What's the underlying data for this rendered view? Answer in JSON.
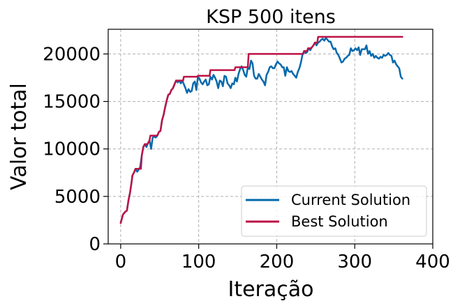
{
  "chart_data": {
    "type": "line",
    "title": "KSP 500 itens",
    "xlabel": "Iteração",
    "ylabel": "Valor total",
    "xlim": [
      -16,
      400
    ],
    "ylim": [
      0,
      22600
    ],
    "x_ticks": [
      0,
      100,
      200,
      300,
      400
    ],
    "y_ticks": [
      0,
      5000,
      10000,
      15000,
      20000
    ],
    "x_tick_labels": [
      "0",
      "100",
      "200",
      "300",
      "400"
    ],
    "y_tick_labels": [
      "0",
      "5000",
      "10000",
      "15000",
      "20000"
    ],
    "grid": true,
    "legend_position": "lower-right",
    "series": [
      {
        "name": "Current Solution",
        "color": "#0369ac",
        "points": [
          [
            0,
            2200
          ],
          [
            3,
            3100
          ],
          [
            6,
            3400
          ],
          [
            8,
            3500
          ],
          [
            10,
            4600
          ],
          [
            12,
            5400
          ],
          [
            14,
            6500
          ],
          [
            15,
            7200
          ],
          [
            17,
            7500
          ],
          [
            19,
            7900
          ],
          [
            21,
            7600
          ],
          [
            23,
            7800
          ],
          [
            25,
            8100
          ],
          [
            27,
            9300
          ],
          [
            29,
            10200
          ],
          [
            31,
            10500
          ],
          [
            33,
            10200
          ],
          [
            35,
            10600
          ],
          [
            37,
            10900
          ],
          [
            39,
            10000
          ],
          [
            41,
            11200
          ],
          [
            43,
            11300
          ],
          [
            45,
            11200
          ],
          [
            47,
            11400
          ],
          [
            49,
            11800
          ],
          [
            51,
            11900
          ],
          [
            53,
            13000
          ],
          [
            55,
            13600
          ],
          [
            57,
            14400
          ],
          [
            59,
            15100
          ],
          [
            61,
            15700
          ],
          [
            63,
            15800
          ],
          [
            65,
            16200
          ],
          [
            67,
            16400
          ],
          [
            69,
            16800
          ],
          [
            71,
            17200
          ],
          [
            73,
            17000
          ],
          [
            75,
            17200
          ],
          [
            77,
            16900
          ],
          [
            79,
            17200
          ],
          [
            81,
            16800
          ],
          [
            83,
            16400
          ],
          [
            85,
            15900
          ],
          [
            87,
            16300
          ],
          [
            89,
            16000
          ],
          [
            91,
            16100
          ],
          [
            93,
            16900
          ],
          [
            95,
            17100
          ],
          [
            97,
            16200
          ],
          [
            99,
            17600
          ],
          [
            101,
            17400
          ],
          [
            103,
            17000
          ],
          [
            105,
            16800
          ],
          [
            107,
            17100
          ],
          [
            109,
            17300
          ],
          [
            111,
            16700
          ],
          [
            113,
            16800
          ],
          [
            115,
            17600
          ],
          [
            117,
            17300
          ],
          [
            119,
            17800
          ],
          [
            121,
            17500
          ],
          [
            123,
            17100
          ],
          [
            125,
            16400
          ],
          [
            127,
            17200
          ],
          [
            129,
            17100
          ],
          [
            131,
            16600
          ],
          [
            133,
            17700
          ],
          [
            135,
            17600
          ],
          [
            137,
            16900
          ],
          [
            139,
            16700
          ],
          [
            141,
            16400
          ],
          [
            143,
            16900
          ],
          [
            145,
            16800
          ],
          [
            147,
            17500
          ],
          [
            149,
            17100
          ],
          [
            151,
            17900
          ],
          [
            153,
            18400
          ],
          [
            155,
            18700
          ],
          [
            157,
            18300
          ],
          [
            159,
            17800
          ],
          [
            161,
            17600
          ],
          [
            163,
            18600
          ],
          [
            165,
            18400
          ],
          [
            167,
            19300
          ],
          [
            169,
            19000
          ],
          [
            171,
            17700
          ],
          [
            173,
            17400
          ],
          [
            175,
            17400
          ],
          [
            177,
            17900
          ],
          [
            179,
            17600
          ],
          [
            181,
            17300
          ],
          [
            183,
            17100
          ],
          [
            185,
            16700
          ],
          [
            187,
            17800
          ],
          [
            189,
            18100
          ],
          [
            191,
            18600
          ],
          [
            193,
            18700
          ],
          [
            195,
            18500
          ],
          [
            197,
            18500
          ],
          [
            199,
            18900
          ],
          [
            201,
            19200
          ],
          [
            203,
            19000
          ],
          [
            205,
            18900
          ],
          [
            207,
            18600
          ],
          [
            209,
            18600
          ],
          [
            211,
            17700
          ],
          [
            213,
            18600
          ],
          [
            215,
            18200
          ],
          [
            217,
            18100
          ],
          [
            219,
            18200
          ],
          [
            221,
            17900
          ],
          [
            223,
            17700
          ],
          [
            225,
            17500
          ],
          [
            227,
            18100
          ],
          [
            229,
            18500
          ],
          [
            231,
            19100
          ],
          [
            233,
            19900
          ],
          [
            235,
            20300
          ],
          [
            237,
            20100
          ],
          [
            239,
            20200
          ],
          [
            241,
            20600
          ],
          [
            243,
            20400
          ],
          [
            245,
            20700
          ],
          [
            247,
            20900
          ],
          [
            249,
            21200
          ],
          [
            251,
            20900
          ],
          [
            253,
            21200
          ],
          [
            255,
            21300
          ],
          [
            257,
            21500
          ],
          [
            259,
            21600
          ],
          [
            261,
            21400
          ],
          [
            263,
            21700
          ],
          [
            265,
            21500
          ],
          [
            267,
            21300
          ],
          [
            269,
            21300
          ],
          [
            271,
            20800
          ],
          [
            273,
            20500
          ],
          [
            275,
            20600
          ],
          [
            277,
            20100
          ],
          [
            279,
            19900
          ],
          [
            281,
            19500
          ],
          [
            283,
            19100
          ],
          [
            285,
            19200
          ],
          [
            287,
            19500
          ],
          [
            289,
            19600
          ],
          [
            291,
            19800
          ],
          [
            293,
            19900
          ],
          [
            295,
            20600
          ],
          [
            297,
            20300
          ],
          [
            299,
            20400
          ],
          [
            301,
            20600
          ],
          [
            303,
            20400
          ],
          [
            305,
            20700
          ],
          [
            307,
            19900
          ],
          [
            309,
            20500
          ],
          [
            311,
            20500
          ],
          [
            313,
            20500
          ],
          [
            315,
            20900
          ],
          [
            317,
            20000
          ],
          [
            319,
            20300
          ],
          [
            321,
            19800
          ],
          [
            323,
            20000
          ],
          [
            325,
            19600
          ],
          [
            327,
            19800
          ],
          [
            329,
            19600
          ],
          [
            331,
            19500
          ],
          [
            333,
            19700
          ],
          [
            335,
            19600
          ],
          [
            337,
            19900
          ],
          [
            339,
            19800
          ],
          [
            341,
            19900
          ],
          [
            343,
            20100
          ],
          [
            345,
            19900
          ],
          [
            347,
            19800
          ],
          [
            349,
            19100
          ],
          [
            351,
            19300
          ],
          [
            353,
            18900
          ],
          [
            355,
            18700
          ],
          [
            357,
            18500
          ],
          [
            359,
            17600
          ],
          [
            361,
            17400
          ]
        ]
      },
      {
        "name": "Best Solution",
        "color": "#bd1246",
        "points": [
          [
            0,
            2200
          ],
          [
            3,
            3100
          ],
          [
            6,
            3400
          ],
          [
            8,
            3500
          ],
          [
            10,
            4600
          ],
          [
            12,
            5400
          ],
          [
            14,
            6500
          ],
          [
            15,
            7200
          ],
          [
            17,
            7500
          ],
          [
            19,
            7900
          ],
          [
            26,
            7900
          ],
          [
            27,
            9300
          ],
          [
            29,
            10200
          ],
          [
            31,
            10500
          ],
          [
            34,
            10500
          ],
          [
            35,
            10600
          ],
          [
            37,
            10900
          ],
          [
            38,
            11400
          ],
          [
            47,
            11400
          ],
          [
            49,
            11800
          ],
          [
            51,
            11900
          ],
          [
            53,
            13000
          ],
          [
            55,
            13600
          ],
          [
            57,
            14400
          ],
          [
            59,
            15100
          ],
          [
            61,
            15700
          ],
          [
            63,
            15800
          ],
          [
            65,
            16200
          ],
          [
            67,
            16400
          ],
          [
            69,
            16800
          ],
          [
            71,
            17200
          ],
          [
            80,
            17200
          ],
          [
            81,
            17600
          ],
          [
            98,
            17600
          ],
          [
            99,
            17700
          ],
          [
            114,
            17700
          ],
          [
            115,
            18300
          ],
          [
            146,
            18300
          ],
          [
            147,
            18600
          ],
          [
            162,
            18600
          ],
          [
            163,
            18700
          ],
          [
            164,
            20000
          ],
          [
            234,
            20000
          ],
          [
            235,
            20300
          ],
          [
            239,
            20300
          ],
          [
            240,
            20600
          ],
          [
            244,
            20600
          ],
          [
            245,
            20700
          ],
          [
            247,
            20900
          ],
          [
            249,
            21200
          ],
          [
            252,
            21200
          ],
          [
            253,
            21800
          ],
          [
            361,
            21800
          ]
        ]
      }
    ]
  }
}
